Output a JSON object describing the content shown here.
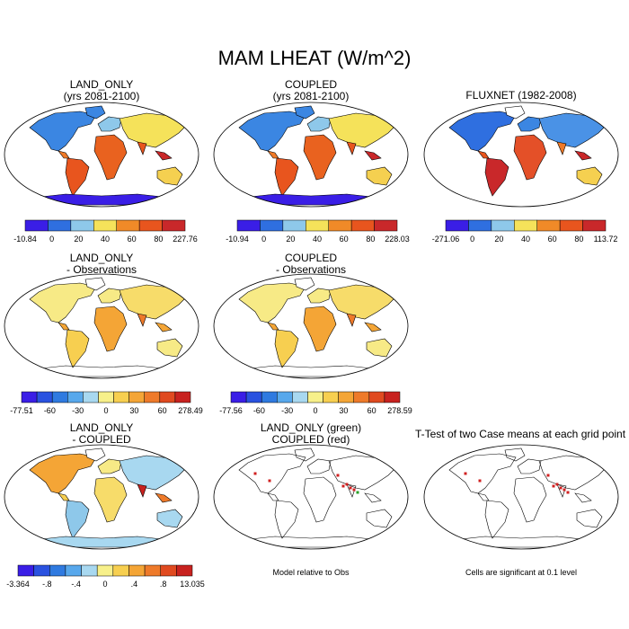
{
  "title": "MAM LHEAT (W/m^2)",
  "panels": [
    {
      "id": "land-only",
      "title1": "LAND_ONLY",
      "title2": "(yrs 2081-2100)",
      "scheme": "abs",
      "antarctica": "blue",
      "colorbar": {
        "colors": [
          "#3a1ee6",
          "#2f6fe0",
          "#8ec8ea",
          "#f5e25a",
          "#f08a28",
          "#e8551e",
          "#c9282a"
        ],
        "labels": [
          "-10.84",
          "0",
          "20",
          "40",
          "60",
          "80",
          "227.76"
        ]
      }
    },
    {
      "id": "coupled",
      "title1": "COUPLED",
      "title2": "(yrs 2081-2100)",
      "scheme": "abs",
      "antarctica": "blue",
      "colorbar": {
        "colors": [
          "#3a1ee6",
          "#2f6fe0",
          "#8ec8ea",
          "#f5e25a",
          "#f08a28",
          "#e8551e",
          "#c9282a"
        ],
        "labels": [
          "-10.94",
          "0",
          "20",
          "40",
          "60",
          "80",
          "228.03"
        ]
      }
    },
    {
      "id": "fluxnet",
      "title1": "FLUXNET (1982-2008)",
      "title2": "",
      "scheme": "fluxnet",
      "antarctica": "none",
      "colorbar": {
        "colors": [
          "#3a1ee6",
          "#2f6fe0",
          "#8ec8ea",
          "#f5e25a",
          "#f08a28",
          "#e8551e",
          "#c9282a"
        ],
        "labels": [
          "-271.06",
          "0",
          "20",
          "40",
          "60",
          "80",
          "113.72"
        ]
      }
    },
    {
      "id": "land-only-minus-obs",
      "title1": "LAND_ONLY",
      "title2": "- Observations",
      "scheme": "diff",
      "antarctica": "outline",
      "colorbar": {
        "colors": [
          "#3a1ee6",
          "#2a52e0",
          "#2f7ae0",
          "#58a8ec",
          "#a8d8f0",
          "#f7f08a",
          "#f7cf50",
          "#f4a536",
          "#ee7a2a",
          "#e04a20",
          "#c8221f"
        ],
        "labels": [
          "-77.51",
          "-60",
          "-30",
          "0",
          "30",
          "60",
          "278.49"
        ]
      }
    },
    {
      "id": "coupled-minus-obs",
      "title1": "COUPLED",
      "title2": "- Observations",
      "scheme": "diff",
      "antarctica": "outline",
      "colorbar": {
        "colors": [
          "#3a1ee6",
          "#2a52e0",
          "#2f7ae0",
          "#58a8ec",
          "#a8d8f0",
          "#f7f08a",
          "#f7cf50",
          "#f4a536",
          "#ee7a2a",
          "#e04a20",
          "#c8221f"
        ],
        "labels": [
          "-77.56",
          "-60",
          "-30",
          "0",
          "30",
          "60",
          "278.59"
        ]
      }
    },
    {
      "id": "land-only-minus-coupled",
      "title1": "LAND_ONLY",
      "title2": "- COUPLED",
      "scheme": "diff2",
      "antarctica": "lightblue",
      "colorbar": {
        "colors": [
          "#3a1ee6",
          "#2a52e0",
          "#2f7ae0",
          "#58a8ec",
          "#a8d8f0",
          "#f7f08a",
          "#f7cf50",
          "#f4a536",
          "#ee7a2a",
          "#e04a20",
          "#c8221f"
        ],
        "labels": [
          "-3.364",
          "-.8",
          "-.4",
          "0",
          ".4",
          ".8",
          "13.035"
        ]
      }
    },
    {
      "id": "model-relative",
      "title1": "LAND_ONLY (green)",
      "title2": "COUPLED (red)",
      "scheme": "outline-green",
      "antarctica": "outline",
      "note": "Model relative to Obs"
    },
    {
      "id": "t-test",
      "title1": "T-Test of two Case means at each grid point",
      "title2": "",
      "scheme": "outline-red",
      "antarctica": "outline",
      "note": "Cells are significant at 0.1 level"
    }
  ]
}
